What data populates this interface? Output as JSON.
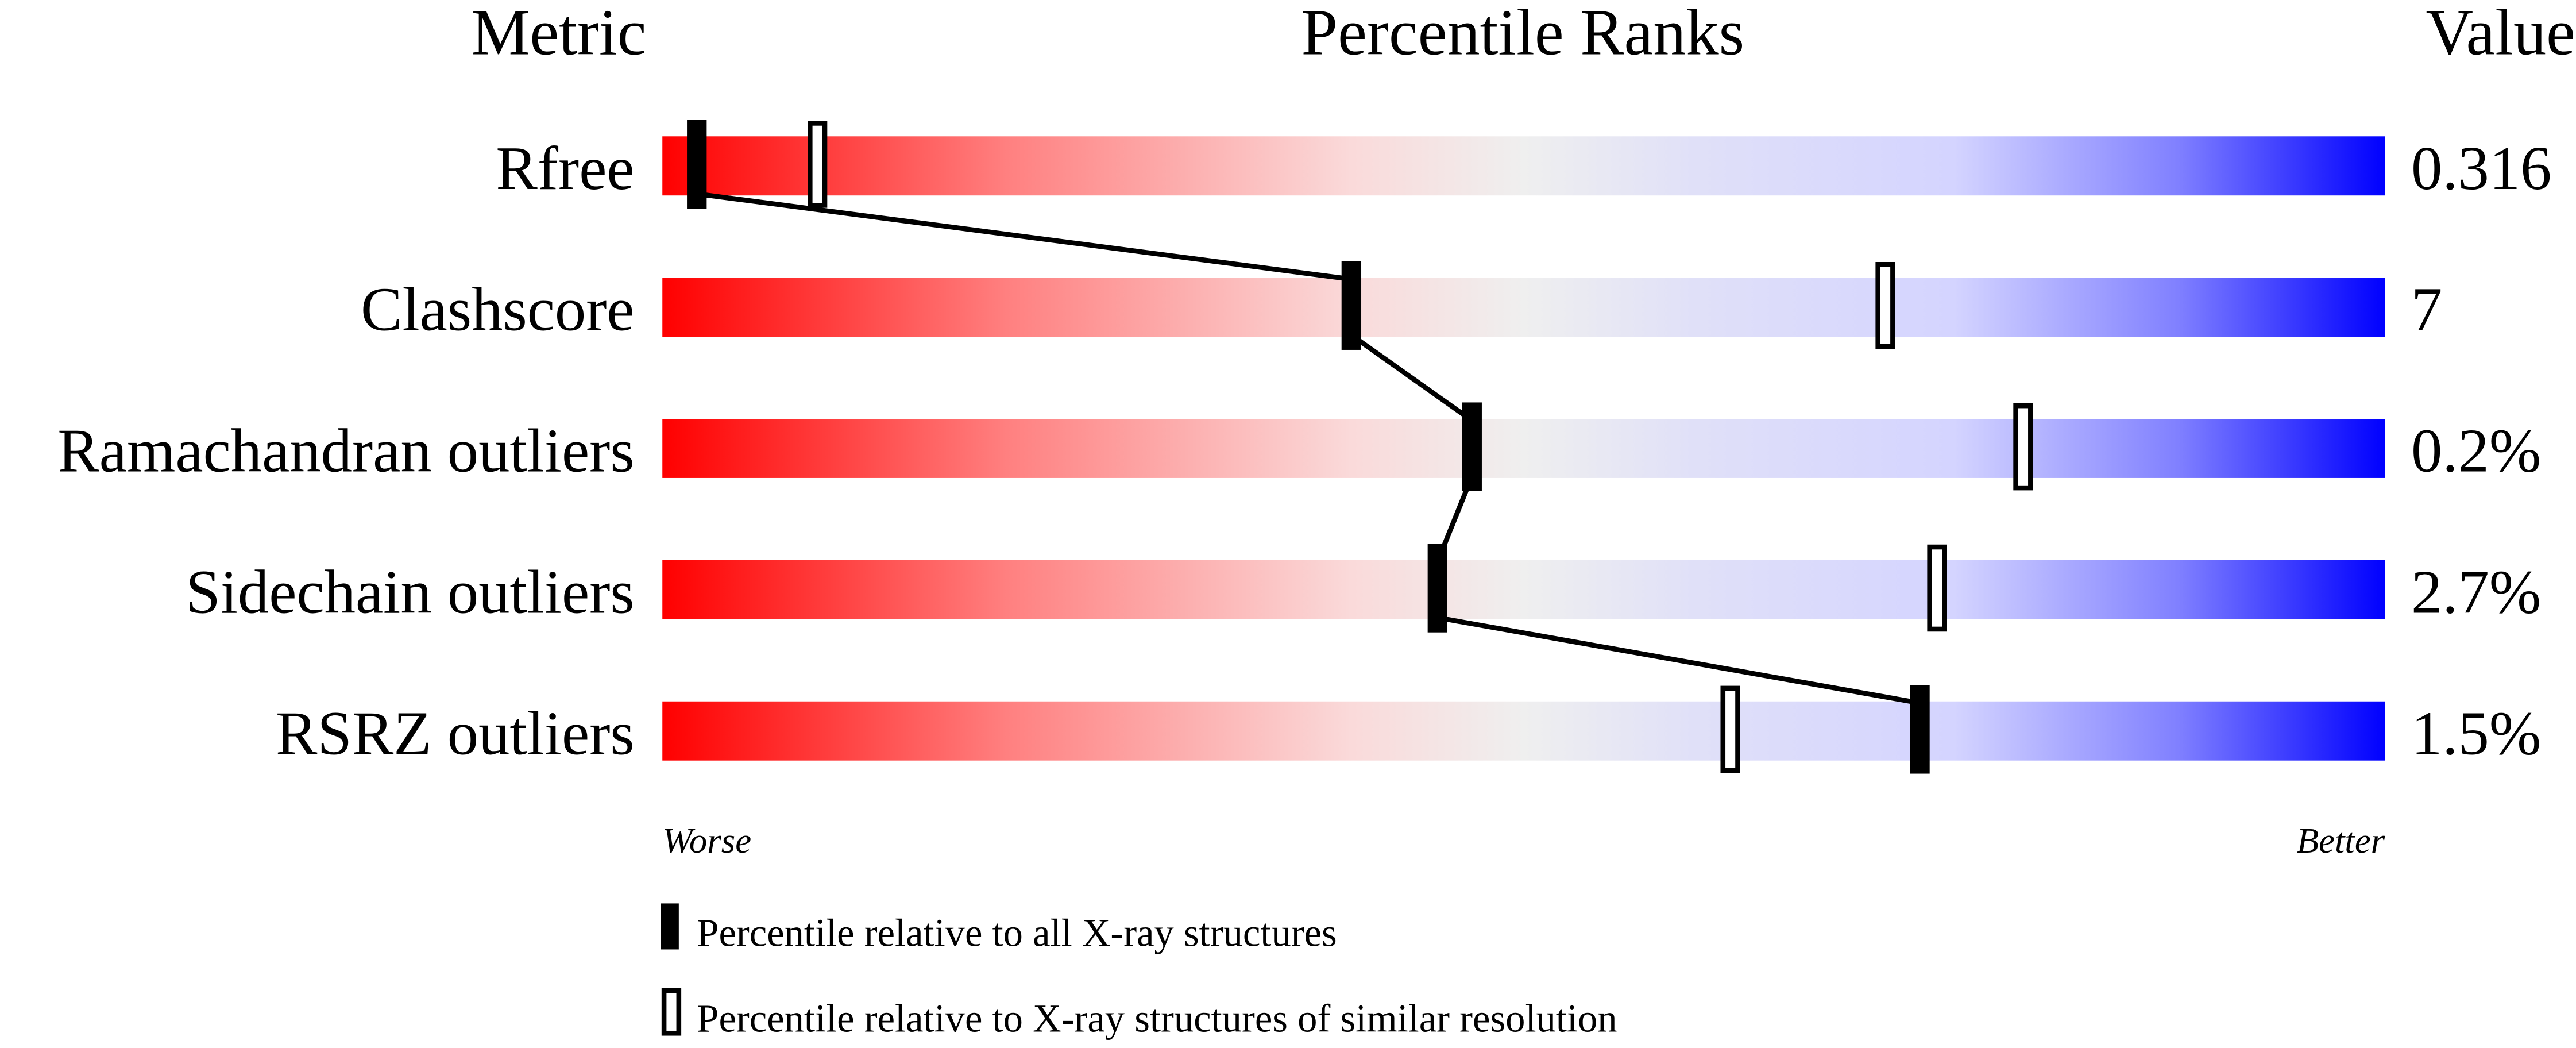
{
  "chart_data": {
    "type": "percentile-bar",
    "headers": {
      "metric": "Metric",
      "ranks": "Percentile Ranks",
      "value": "Value"
    },
    "xlim": [
      0,
      100
    ],
    "colors": {
      "worse": "#ff0000",
      "middle": "#efefef",
      "better": "#0000ff",
      "marker": "#000000"
    },
    "metrics": [
      {
        "name": "Rfree",
        "value": "0.316",
        "percentile_all": 2,
        "percentile_similar": 9
      },
      {
        "name": "Clashscore",
        "value": "7",
        "percentile_all": 40,
        "percentile_similar": 71
      },
      {
        "name": "Ramachandran outliers",
        "value": "0.2%",
        "percentile_all": 47,
        "percentile_similar": 79
      },
      {
        "name": "Sidechain outliers",
        "value": "2.7%",
        "percentile_all": 45,
        "percentile_similar": 74
      },
      {
        "name": "RSRZ outliers",
        "value": "1.5%",
        "percentile_all": 73,
        "percentile_similar": 62
      }
    ],
    "axis_labels": {
      "left": "Worse",
      "right": "Better"
    },
    "legend": {
      "filled": "Percentile relative to all X-ray structures",
      "open": "Percentile relative to X-ray structures of similar resolution"
    }
  }
}
